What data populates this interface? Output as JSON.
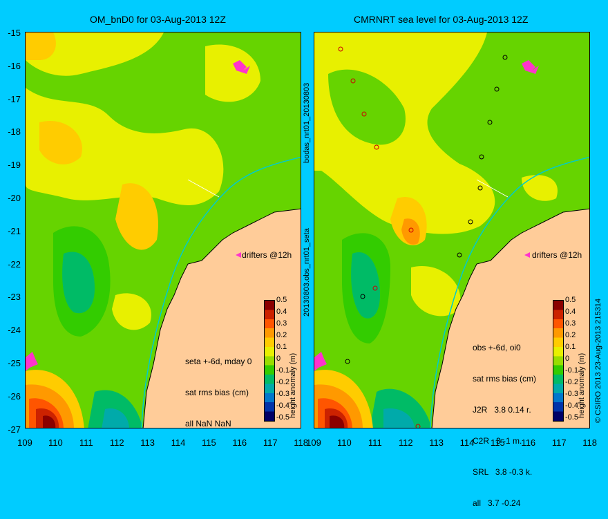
{
  "left_panel": {
    "title": "OM_bnD0 for 03-Aug-2013 12Z",
    "drifters_label": "drifters @12h",
    "stats_lines": [
      "seta +-6d, mday 0",
      "sat rms bias (cm)",
      "all NaN NaN"
    ]
  },
  "right_panel": {
    "title": "CMRNRT sea level  for 03-Aug-2013 12Z",
    "drifters_label": "drifters @12h",
    "stats_lines": [
      "obs +-6d, oi0",
      "sat rms bias (cm)",
      "J2R   3.8 0.14 r.",
      "C2R   3 -1 m.",
      "SRL   3.8 -0.3 k.",
      "all   3.7 -0.24"
    ]
  },
  "side_labels": {
    "middle": "20130803.obs_nrt01_seta",
    "middle_top": "bodas_nrt01_20130803",
    "right": "© CSIRO 2013   23-Aug-2013 215314"
  },
  "axes": {
    "lat_ticks": [
      "-15",
      "-16",
      "-17",
      "-18",
      "-19",
      "-20",
      "-21",
      "-22",
      "-23",
      "-24",
      "-25",
      "-26",
      "-27"
    ],
    "lon_ticks_left": [
      "109",
      "110",
      "111",
      "112",
      "113",
      "114",
      "115",
      "116",
      "117",
      "118"
    ],
    "lon_ticks_right": [
      "109",
      "110",
      "111",
      "112",
      "113",
      "114",
      "115",
      "116",
      "117",
      "118"
    ]
  },
  "colorbar": {
    "label": "height anomaly (m)",
    "ticks": [
      "0.5",
      "0.4",
      "0.3",
      "0.2",
      "0.1",
      "0",
      "-0.1",
      "-0.2",
      "-0.3",
      "-0.4",
      "-0.5"
    ],
    "colors": [
      "#8b0000",
      "#cc2200",
      "#ff5500",
      "#ff9900",
      "#ffcc00",
      "#e8f000",
      "#99dd00",
      "#33cc00",
      "#00bb66",
      "#00aaaa",
      "#0077cc",
      "#0033aa",
      "#000066"
    ]
  },
  "colors": {
    "background": "#00ccff",
    "land": "#ffcc99",
    "ocean_base": "#66d400"
  }
}
